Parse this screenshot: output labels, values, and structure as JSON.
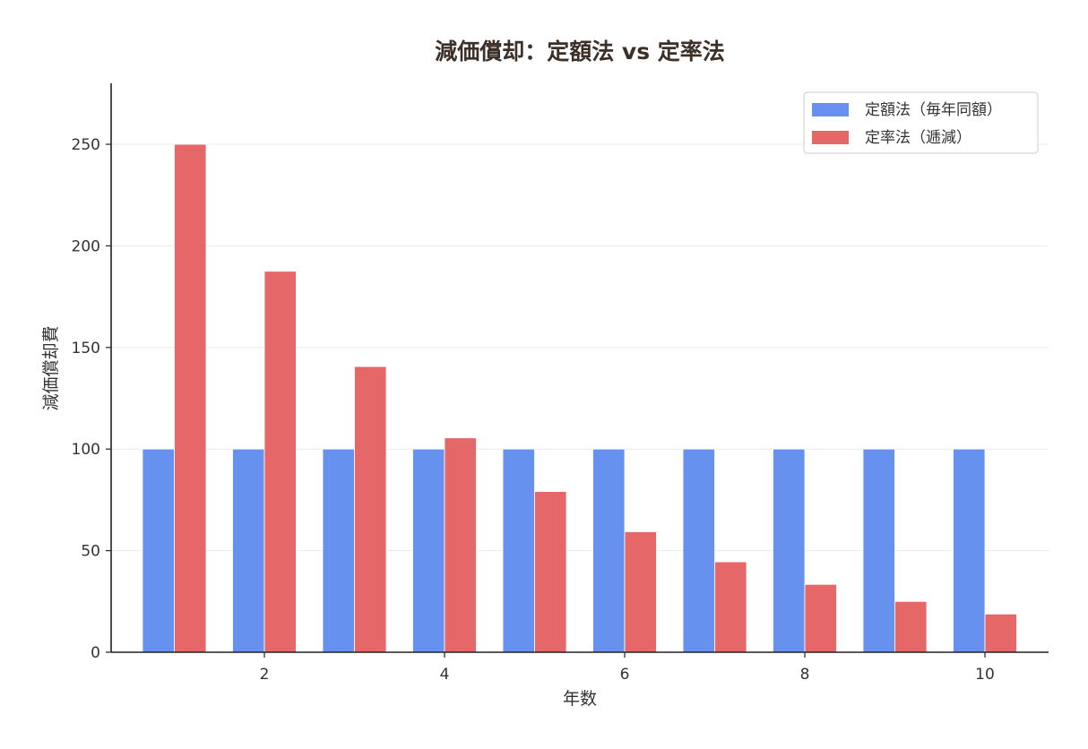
{
  "chart_data": {
    "type": "bar",
    "title": "減価償却：定額法 vs 定率法",
    "xlabel": "年数",
    "ylabel": "減価償却費",
    "categories": [
      1,
      2,
      3,
      4,
      5,
      6,
      7,
      8,
      9,
      10
    ],
    "xticks": [
      2,
      4,
      6,
      8,
      10
    ],
    "yticks": [
      0,
      50,
      100,
      150,
      200,
      250
    ],
    "ylim": [
      0,
      280
    ],
    "grid": "horizontal",
    "legend_position": "top-right",
    "series": [
      {
        "name": "定額法（毎年同額）",
        "color": "#6691ef",
        "values": [
          100,
          100,
          100,
          100,
          100,
          100,
          100,
          100,
          100,
          100
        ]
      },
      {
        "name": "定率法（逓減）",
        "color": "#e56767",
        "values": [
          250,
          187.5,
          140.6,
          105.5,
          79.1,
          59.3,
          44.5,
          33.4,
          25.0,
          18.8
        ]
      }
    ]
  }
}
